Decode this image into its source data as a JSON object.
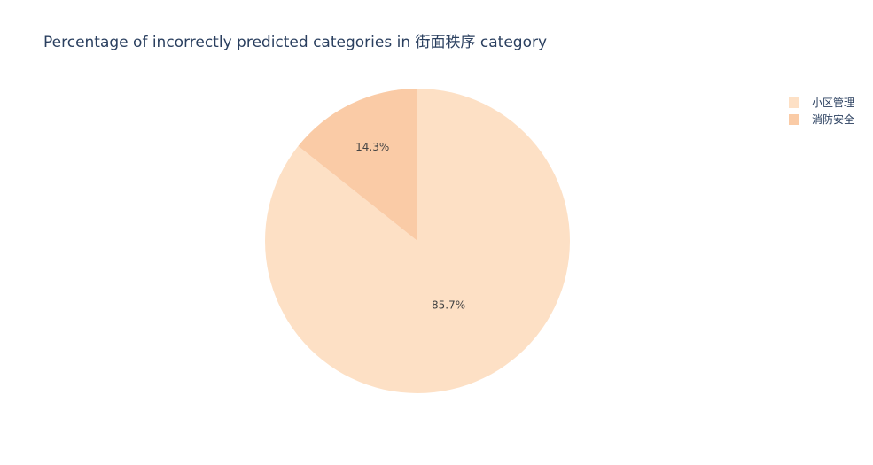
{
  "chart_data": {
    "type": "pie",
    "title": "Percentage of incorrectly predicted categories in 街面秩序 category",
    "categories": [
      "小区管理",
      "消防安全"
    ],
    "values": [
      85.7,
      14.3
    ],
    "labels": [
      "85.7%",
      "14.3%"
    ],
    "colors": [
      "#fde0c5",
      "#facba6"
    ],
    "legend_position": "top-right",
    "direction": "clockwise",
    "start": "top"
  }
}
